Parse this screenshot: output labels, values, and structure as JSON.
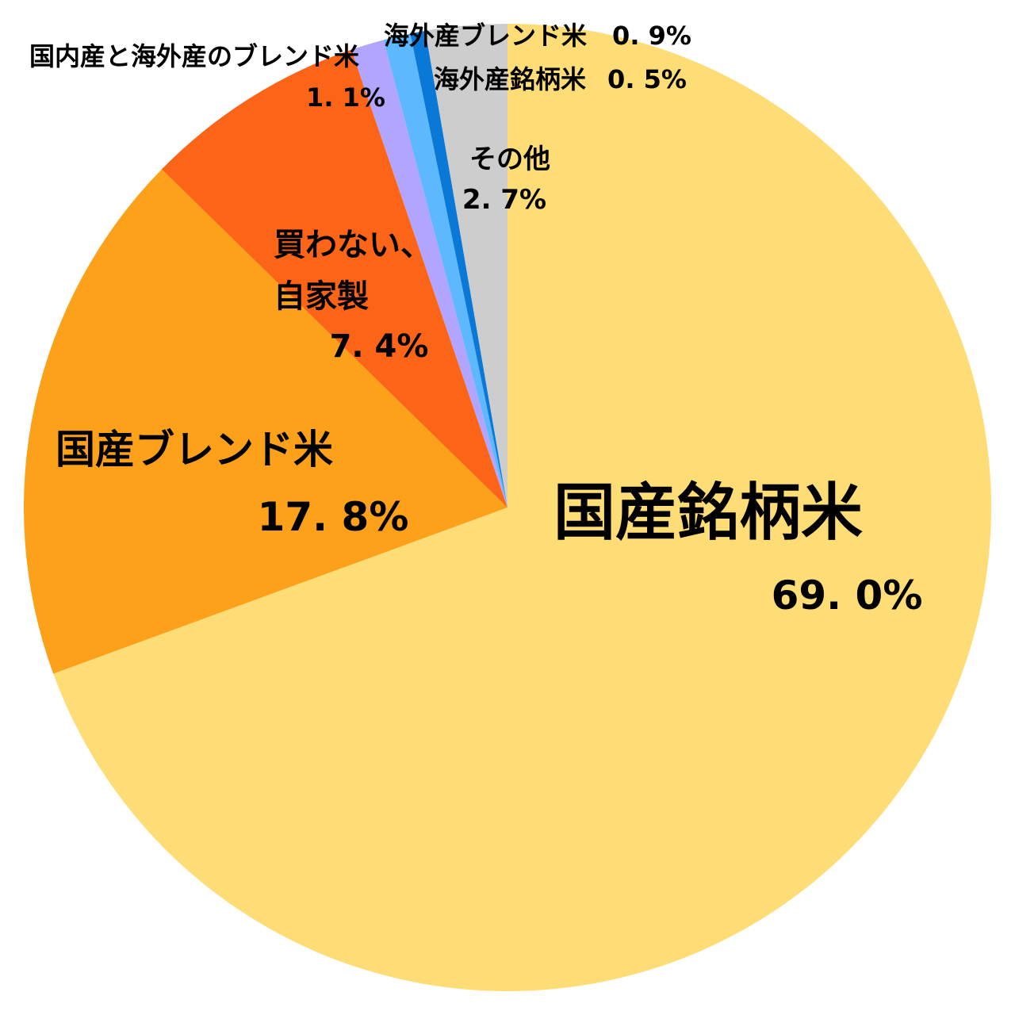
{
  "chart_data": {
    "type": "pie",
    "start": "12 o'clock",
    "direction": "clockwise",
    "slices": [
      {
        "label": "国産銘柄米",
        "value": 69.0,
        "value_label": "69. 0%",
        "color": "#FEDD77"
      },
      {
        "label": "国産ブレンド米",
        "value": 17.8,
        "value_label": "17. 8%",
        "color": "#FCA119"
      },
      {
        "label_lines": [
          "買わない、",
          "自家製"
        ],
        "value": 7.4,
        "value_label": "7. 4%",
        "color": "#FC6518"
      },
      {
        "label": "国内産と海外産のブレンド米",
        "value": 1.1,
        "value_label": "1. 1%",
        "color": "#B2A5FF"
      },
      {
        "label": "海外産ブレンド米",
        "value": 0.9,
        "value_label": "0. 9%",
        "color": "#5DB8FE"
      },
      {
        "label": "海外産銘柄米",
        "value": 0.5,
        "value_label": "0. 5%",
        "color": "#0A78D6"
      },
      {
        "label": "その他",
        "value": 2.7,
        "value_label": "2. 7%",
        "color": "#CDCDCD"
      }
    ]
  }
}
